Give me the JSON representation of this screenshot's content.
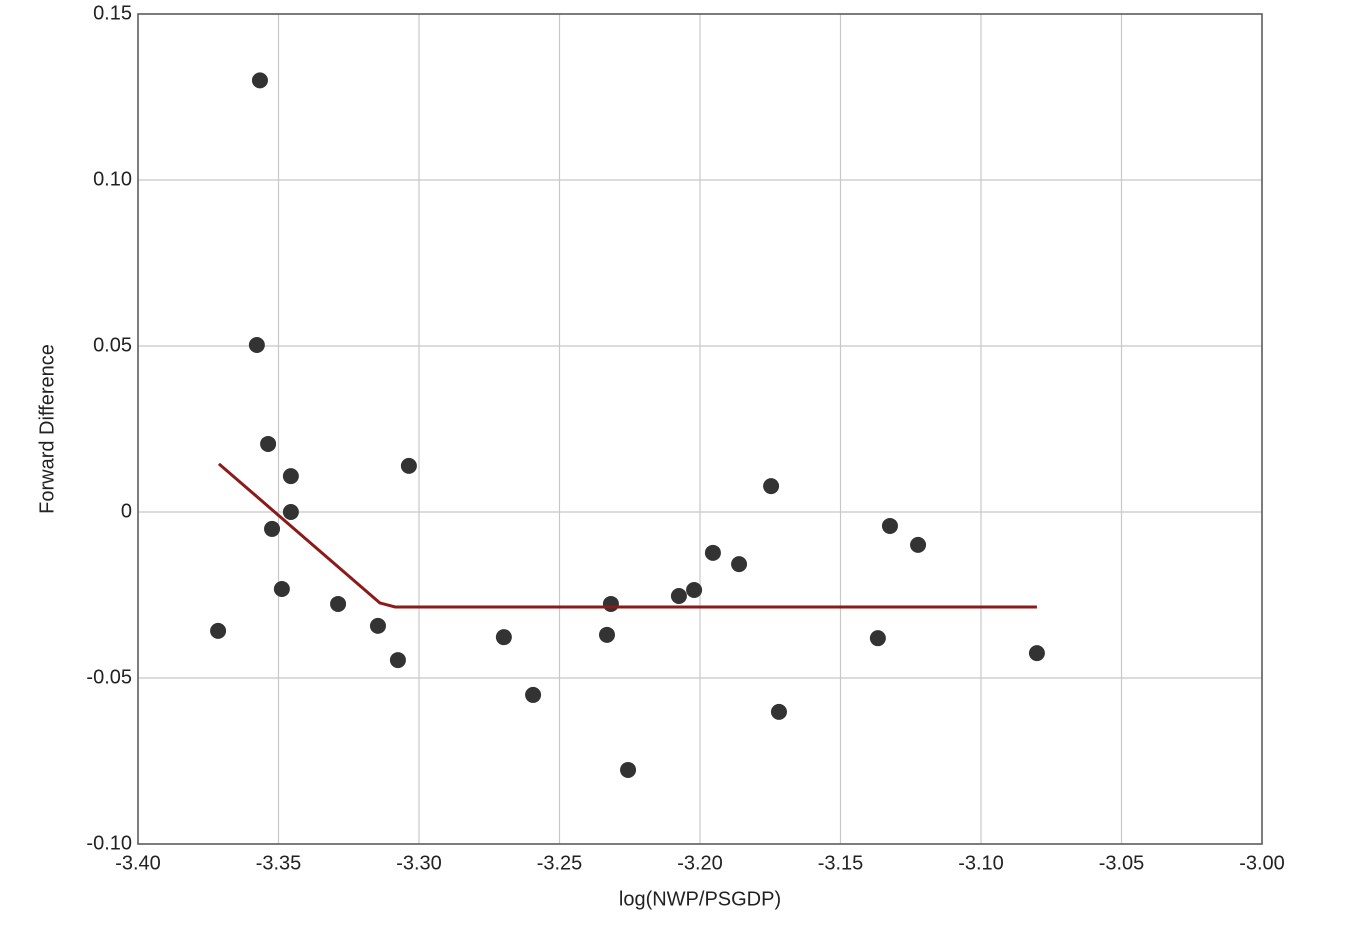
{
  "chart_data": {
    "type": "scatter",
    "x_label": "log(NWP/PSGDP)",
    "y_label": "Forward Difference",
    "xlim": [
      -3.4,
      -3.0
    ],
    "ylim": [
      -0.1,
      0.15
    ],
    "xticks": [
      {
        "value": -3.4,
        "label": "-3.40"
      },
      -3.35,
      {
        "value": -3.3,
        "label": "-3.30"
      },
      -3.25,
      {
        "value": -3.2,
        "label": "-3.20"
      },
      -3.15,
      {
        "value": -3.1,
        "label": "-3.10"
      },
      -3.05,
      {
        "value": -3.0,
        "label": "-3.00"
      }
    ],
    "yticks": [
      {
        "value": -0.1,
        "label": "-0.10"
      },
      -0.05,
      0,
      0.05,
      {
        "value": 0.1,
        "label": "0.10"
      },
      0.15
    ],
    "grid": true,
    "series": [
      {
        "type": "scatter",
        "color": "#333333",
        "x": [
          -3.3715,
          -3.3566,
          -3.3577,
          -3.3537,
          -3.3456,
          -3.3456,
          -3.3523,
          -3.3488,
          -3.3288,
          -3.3146,
          -3.3075,
          -3.3036,
          -3.2698,
          -3.2594,
          -3.2331,
          -3.2317,
          -3.2256,
          -3.2075,
          -3.2021,
          -3.1954,
          -3.1861,
          -3.1747,
          -3.1719,
          -3.1367,
          -3.1324,
          -3.1224,
          -3.0801
        ],
        "values": [
          -0.0358,
          0.13,
          0.0503,
          0.0205,
          0.0108,
          0,
          -0.0051,
          -0.0232,
          -0.0277,
          -0.0343,
          -0.0446,
          0.0139,
          -0.0377,
          -0.0551,
          -0.037,
          -0.0277,
          -0.0777,
          -0.0253,
          -0.0235,
          -0.0123,
          -0.0157,
          0.0078,
          -0.0602,
          -0.038,
          -0.0042,
          -0.0099,
          -0.0425
        ]
      },
      {
        "type": "line",
        "color": "#8b1a1a",
        "x": [
          -3.3712,
          -3.3139,
          -3.3085,
          -3.0801
        ],
        "values": [
          0.0145,
          -0.0274,
          -0.0286,
          -0.0286
        ]
      }
    ]
  }
}
